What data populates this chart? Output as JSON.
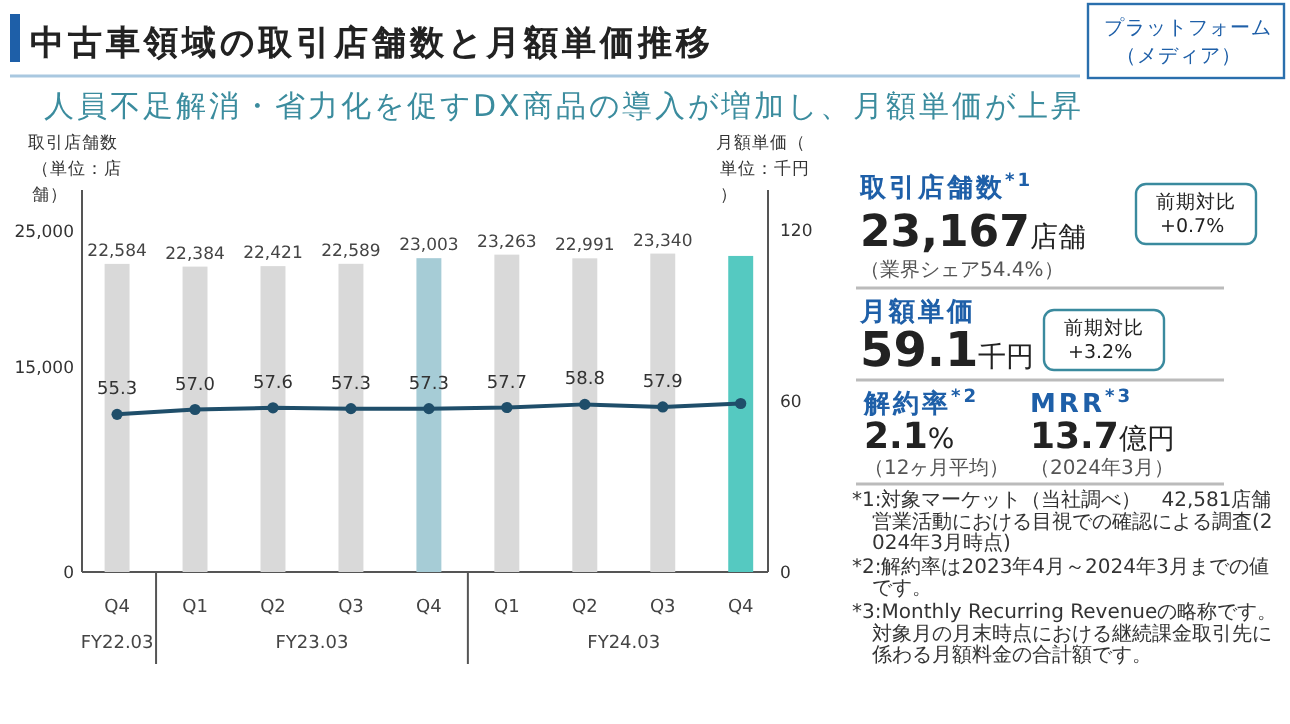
{
  "chart_data": [
    {
      "type": "bar",
      "title": "中古車領域の取引店舗数と月額単価推移",
      "subtitle": "人員不足解消・省力化を促すDX商品の導入が増加し、月額単価が上昇",
      "ylabel": "取引店舗数（単位：店舗）",
      "y2label": "月額単価（単位：千円）",
      "categories": [
        "Q4",
        "Q1",
        "Q2",
        "Q3",
        "Q4",
        "Q1",
        "Q2",
        "Q3",
        "Q4"
      ],
      "annotations": [
        "FY22.03",
        "FY23.03",
        "FY24.03"
      ],
      "series": [
        {
          "type": "bar",
          "colors": [
            "#d9d9d9",
            "#d9d9d9",
            "#d9d9d9",
            "#d9d9d9",
            "#a6ccd6",
            "#d9d9d9",
            "#d9d9d9",
            "#d9d9d9",
            "#55c9c1"
          ],
          "values": [
            22584,
            22384,
            22421,
            22589,
            23003,
            23263,
            22991,
            23340,
            23167
          ],
          "value_labels": [
            "22,584",
            "22,384",
            "22,421",
            "22,589",
            "23,003",
            "23,263",
            "22,991",
            "23,340",
            null
          ]
        },
        {
          "type": "line",
          "axis": "y2",
          "color": "#1f4e6a",
          "marker": "circle",
          "values": [
            55.3,
            57.0,
            57.6,
            57.3,
            57.3,
            57.7,
            58.8,
            57.9,
            59.1
          ],
          "value_labels": [
            "55.3",
            "57.0",
            "57.6",
            "57.3",
            "57.3",
            "57.7",
            "58.8",
            "57.9",
            null
          ]
        }
      ],
      "ylim": [
        0,
        28000
      ],
      "yticks": [
        0,
        {
          "value": 15000,
          "label": "15,000"
        },
        {
          "value": 25000,
          "label": "25,000"
        }
      ],
      "y2lim": [
        0,
        134
      ],
      "y2ticks": [
        0,
        60,
        120
      ]
    },
    {
      "type": "other",
      "annotations": [
        "プラットフォーム（メディア）",
        "取引店舗数$^{*1}$",
        "**23,167**店舗",
        "（業界シェア54.4%）",
        "前期対比+0.7%",
        "月額単価",
        "**59.1**千円",
        "前期対比+3.2%",
        "解約率$^{*2}$",
        "**2.1**%",
        "（12ヶ月平均）",
        "MRR$^{*3}$",
        "**13.7**億円",
        "（2024年3月）",
        "*1:対象マーケット（当社調べ）　42,581店舗営業活動における目視での確認による調査(2024年3月時点)",
        "*2:解約率は2023年4月～2024年3月までの値です。",
        "*3:Monthly Recurring Revenueの略称です。対象月の月末時点における継続課金取引先に係わる月額料金の合計額です。"
      ]
    }
  ]
}
